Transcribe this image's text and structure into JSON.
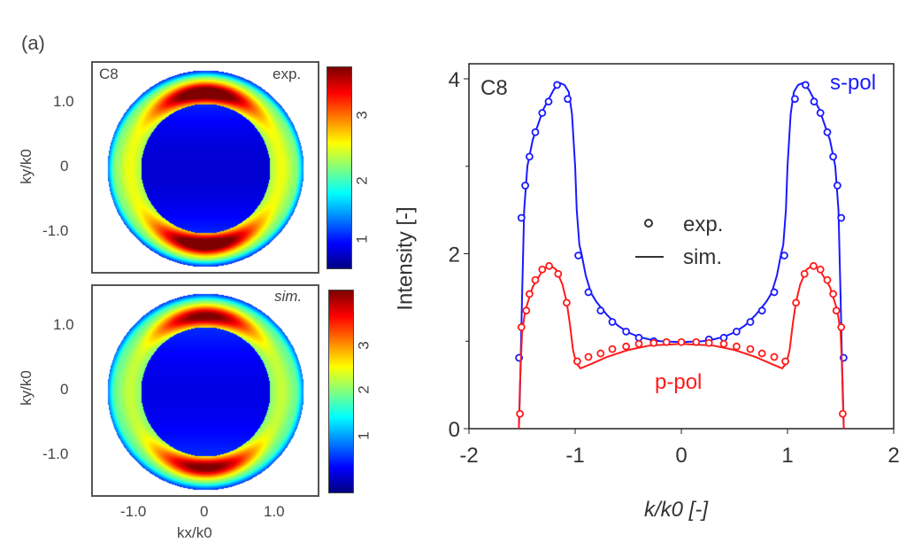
{
  "panel_label": "(a)",
  "heatmaps": [
    {
      "sample": "C8",
      "tag": "exp.",
      "ylabel": "ky/k0",
      "ytick_labels": [
        "1.0",
        "0",
        "-1.0"
      ],
      "colorbar_ticks": [
        "3",
        "2",
        "1"
      ],
      "colorbar_range": [
        0.6,
        3.7
      ]
    },
    {
      "sample": "",
      "tag": "sim.",
      "ylabel": "ky/k0",
      "ytick_labels": [
        "1.0",
        "0",
        "-1.0"
      ],
      "xtick_labels": [
        "-1.0",
        "0",
        "1.0"
      ],
      "xlabel": "kx/k0",
      "colorbar_ticks": [
        "3",
        "2",
        "1"
      ],
      "colorbar_range": [
        0.5,
        4.0
      ]
    }
  ],
  "chart_data": {
    "type": "line",
    "title": "",
    "annotation": "C8",
    "xlabel": "k/k0 [-]",
    "ylabel": "Intensity [-]",
    "xlim": [
      -2,
      2
    ],
    "ylim": [
      0,
      4.1
    ],
    "xticks": [
      "-2",
      "-1",
      "0",
      "1",
      "2"
    ],
    "yticks": [
      "0",
      "2",
      "4"
    ],
    "legend": {
      "markers": "exp.",
      "lines": "sim.",
      "placement": "center"
    },
    "series": [
      {
        "name": "s-pol",
        "color": "#1a1aff",
        "exp": [
          [
            -1.528,
            0.81
          ],
          [
            -1.506,
            2.41
          ],
          [
            -1.47,
            2.78
          ],
          [
            -1.43,
            3.11
          ],
          [
            -1.375,
            3.39
          ],
          [
            -1.31,
            3.61
          ],
          [
            -1.25,
            3.74
          ],
          [
            -1.17,
            3.93
          ],
          [
            -1.07,
            3.77
          ],
          [
            -0.97,
            1.98
          ],
          [
            -0.875,
            1.56
          ],
          [
            -0.76,
            1.35
          ],
          [
            -0.65,
            1.22
          ],
          [
            -0.52,
            1.11
          ],
          [
            -0.4,
            1.04
          ],
          [
            -0.26,
            1.0
          ],
          [
            0.26,
            1.02
          ],
          [
            0.4,
            1.04
          ],
          [
            0.52,
            1.11
          ],
          [
            0.65,
            1.22
          ],
          [
            0.76,
            1.35
          ],
          [
            0.875,
            1.56
          ],
          [
            0.97,
            1.98
          ],
          [
            1.07,
            3.77
          ],
          [
            1.17,
            3.93
          ],
          [
            1.25,
            3.74
          ],
          [
            1.31,
            3.61
          ],
          [
            1.375,
            3.39
          ],
          [
            1.43,
            3.11
          ],
          [
            1.47,
            2.78
          ],
          [
            1.506,
            2.41
          ],
          [
            1.528,
            0.81
          ]
        ],
        "sim": [
          [
            -1.53,
            0
          ],
          [
            -1.52,
            0.4
          ],
          [
            -1.5,
            1.5
          ],
          [
            -1.48,
            2.5
          ],
          [
            -1.45,
            3.0
          ],
          [
            -1.4,
            3.3
          ],
          [
            -1.3,
            3.65
          ],
          [
            -1.2,
            3.88
          ],
          [
            -1.14,
            3.95
          ],
          [
            -1.1,
            3.93
          ],
          [
            -1.06,
            3.85
          ],
          [
            -1.03,
            3.6
          ],
          [
            -1.0,
            3.0
          ],
          [
            -0.985,
            2.5
          ],
          [
            -0.96,
            2.1
          ],
          [
            -0.94,
            2.0
          ],
          [
            -0.9,
            1.75
          ],
          [
            -0.85,
            1.55
          ],
          [
            -0.8,
            1.45
          ],
          [
            -0.7,
            1.3
          ],
          [
            -0.6,
            1.18
          ],
          [
            -0.5,
            1.1
          ],
          [
            -0.4,
            1.05
          ],
          [
            -0.3,
            1.02
          ],
          [
            -0.2,
            1.0
          ],
          [
            0,
            0.99
          ],
          [
            0.2,
            1.0
          ],
          [
            0.3,
            1.02
          ],
          [
            0.4,
            1.05
          ],
          [
            0.5,
            1.1
          ],
          [
            0.6,
            1.18
          ],
          [
            0.7,
            1.3
          ],
          [
            0.8,
            1.45
          ],
          [
            0.85,
            1.55
          ],
          [
            0.9,
            1.75
          ],
          [
            0.94,
            2.0
          ],
          [
            0.96,
            2.1
          ],
          [
            0.985,
            2.5
          ],
          [
            1.0,
            3.0
          ],
          [
            1.03,
            3.6
          ],
          [
            1.06,
            3.85
          ],
          [
            1.1,
            3.93
          ],
          [
            1.14,
            3.95
          ],
          [
            1.2,
            3.88
          ],
          [
            1.3,
            3.65
          ],
          [
            1.4,
            3.3
          ],
          [
            1.45,
            3.0
          ],
          [
            1.48,
            2.5
          ],
          [
            1.5,
            1.5
          ],
          [
            1.52,
            0.4
          ],
          [
            1.53,
            0
          ]
        ]
      },
      {
        "name": "p-pol",
        "color": "#ff1a1a",
        "exp": [
          [
            -1.52,
            0.17
          ],
          [
            -1.506,
            1.16
          ],
          [
            -1.46,
            1.35
          ],
          [
            -1.43,
            1.54
          ],
          [
            -1.375,
            1.7
          ],
          [
            -1.31,
            1.82
          ],
          [
            -1.245,
            1.86
          ],
          [
            -1.16,
            1.77
          ],
          [
            -1.08,
            1.44
          ],
          [
            -0.98,
            0.77
          ],
          [
            -0.875,
            0.82
          ],
          [
            -0.76,
            0.86
          ],
          [
            -0.65,
            0.91
          ],
          [
            -0.52,
            0.94
          ],
          [
            -0.4,
            0.97
          ],
          [
            -0.26,
            0.98
          ],
          [
            -0.14,
            0.99
          ],
          [
            0,
            0.99
          ],
          [
            0.14,
            0.99
          ],
          [
            0.26,
            0.98
          ],
          [
            0.4,
            0.97
          ],
          [
            0.52,
            0.94
          ],
          [
            0.65,
            0.91
          ],
          [
            0.76,
            0.86
          ],
          [
            0.875,
            0.82
          ],
          [
            0.98,
            0.77
          ],
          [
            1.08,
            1.44
          ],
          [
            1.16,
            1.77
          ],
          [
            1.245,
            1.86
          ],
          [
            1.31,
            1.82
          ],
          [
            1.375,
            1.7
          ],
          [
            1.43,
            1.54
          ],
          [
            1.46,
            1.35
          ],
          [
            1.506,
            1.16
          ],
          [
            1.52,
            0.17
          ]
        ],
        "sim": [
          [
            -1.53,
            0
          ],
          [
            -1.52,
            0.5
          ],
          [
            -1.5,
            1.1
          ],
          [
            -1.47,
            1.35
          ],
          [
            -1.4,
            1.62
          ],
          [
            -1.3,
            1.82
          ],
          [
            -1.24,
            1.87
          ],
          [
            -1.18,
            1.82
          ],
          [
            -1.12,
            1.65
          ],
          [
            -1.08,
            1.45
          ],
          [
            -1.05,
            1.2
          ],
          [
            -1.02,
            0.9
          ],
          [
            -0.99,
            0.75
          ],
          [
            -0.95,
            0.69
          ],
          [
            -0.85,
            0.74
          ],
          [
            -0.7,
            0.82
          ],
          [
            -0.5,
            0.9
          ],
          [
            -0.3,
            0.95
          ],
          [
            0,
            0.97
          ],
          [
            0.3,
            0.95
          ],
          [
            0.5,
            0.9
          ],
          [
            0.7,
            0.82
          ],
          [
            0.85,
            0.74
          ],
          [
            0.95,
            0.69
          ],
          [
            0.99,
            0.75
          ],
          [
            1.02,
            0.9
          ],
          [
            1.05,
            1.2
          ],
          [
            1.08,
            1.45
          ],
          [
            1.12,
            1.65
          ],
          [
            1.18,
            1.82
          ],
          [
            1.24,
            1.87
          ],
          [
            1.3,
            1.82
          ],
          [
            1.4,
            1.62
          ],
          [
            1.47,
            1.35
          ],
          [
            1.5,
            1.1
          ],
          [
            1.52,
            0.5
          ],
          [
            1.53,
            0
          ]
        ]
      }
    ]
  }
}
